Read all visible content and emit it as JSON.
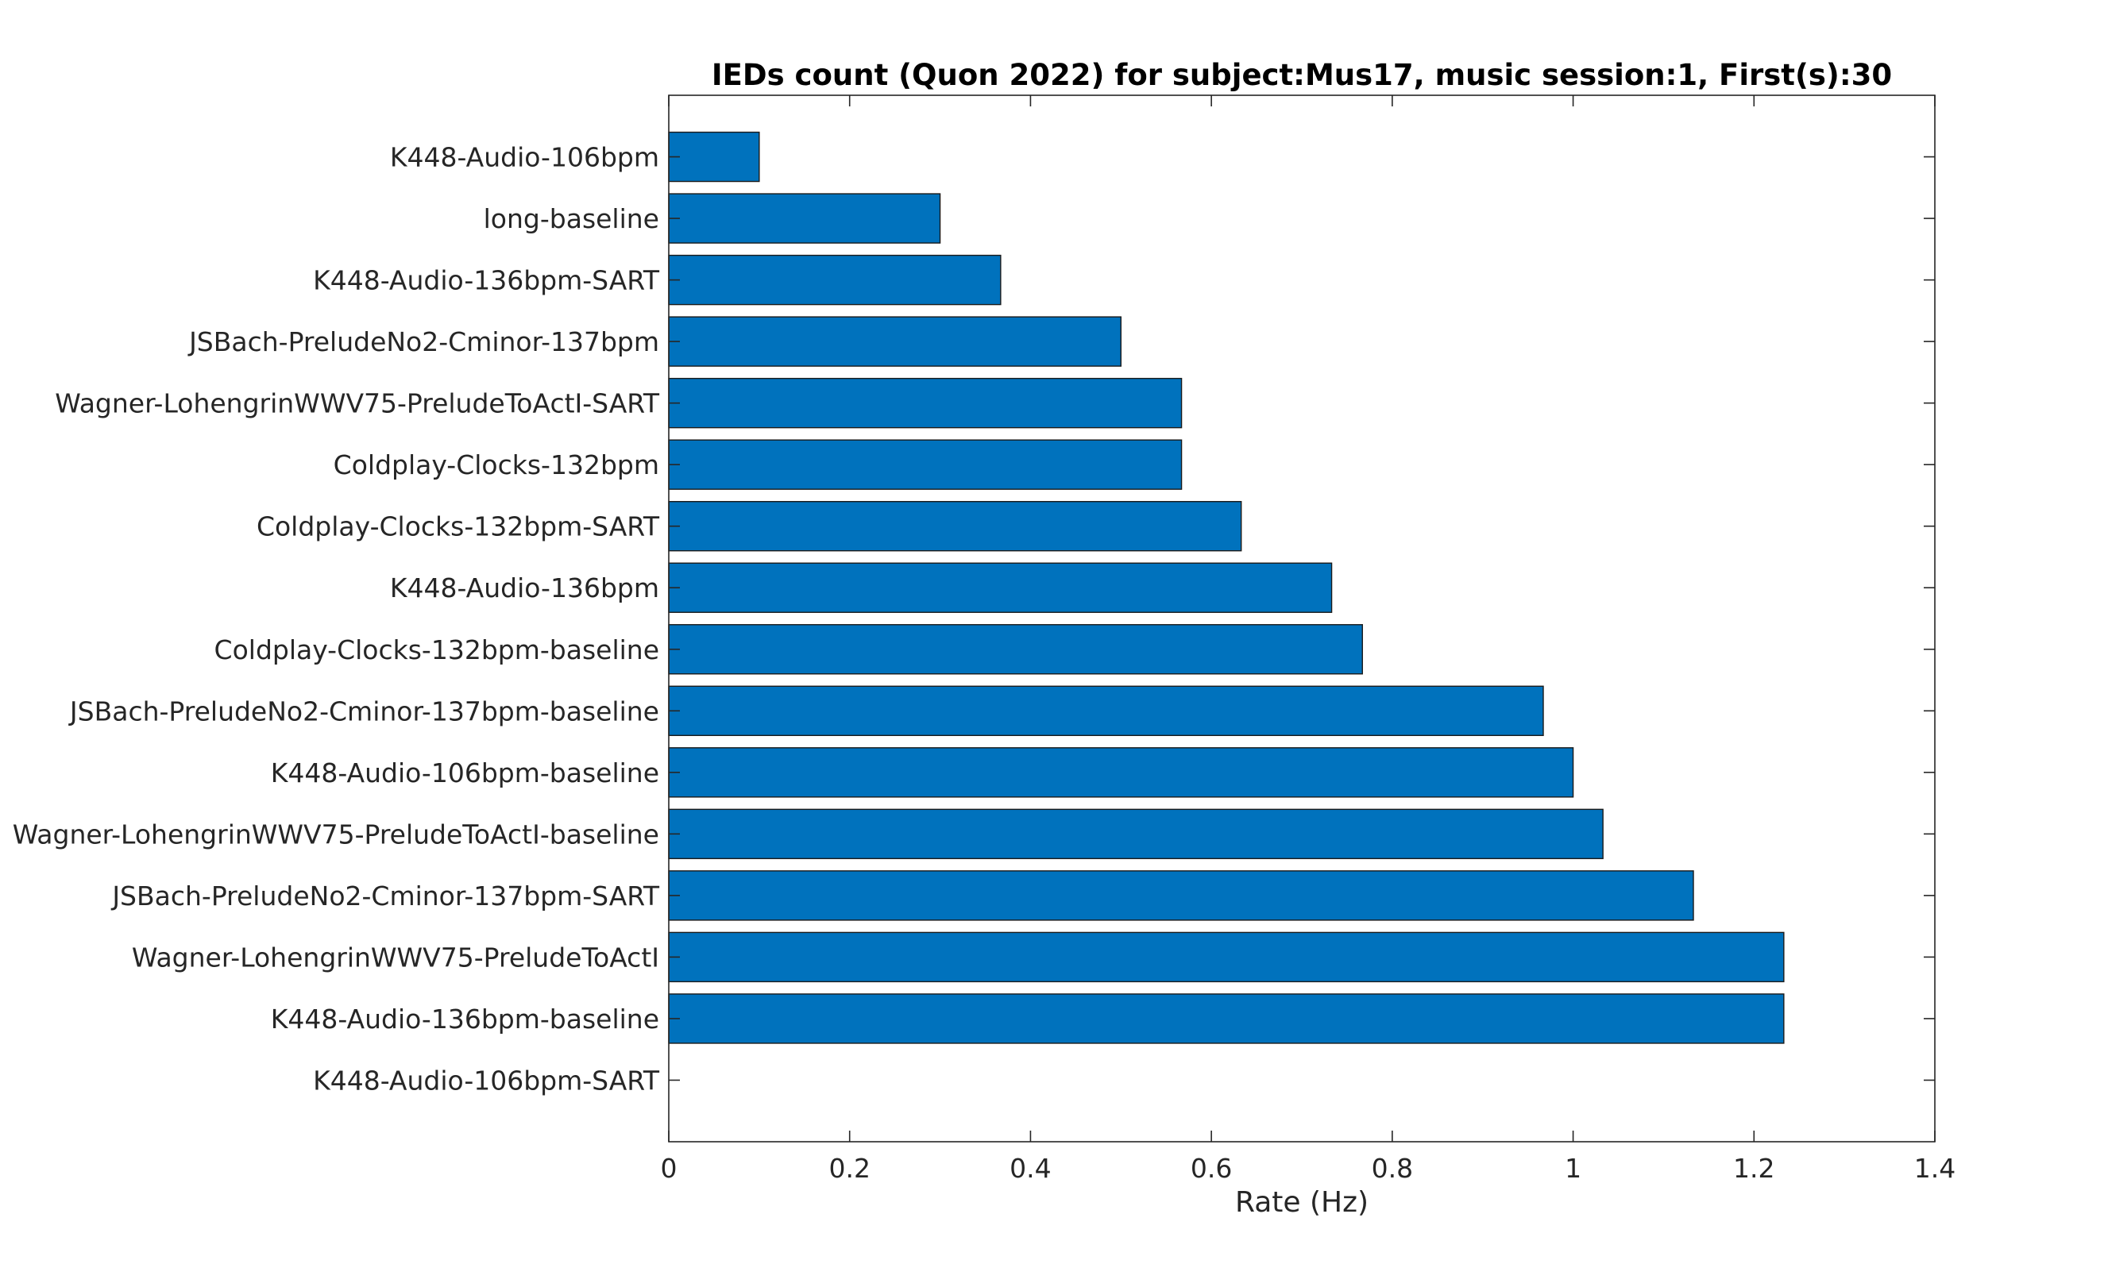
{
  "chart_data": {
    "type": "bar",
    "orientation": "horizontal",
    "title": "IEDs count (Quon 2022) for subject:Mus17, music session:1, First(s):30",
    "xlabel": "Rate (Hz)",
    "ylabel": "",
    "xlim": [
      0,
      1.4
    ],
    "xticks": [
      "0",
      "0.2",
      "0.4",
      "0.6",
      "0.8",
      "1",
      "1.2",
      "1.4"
    ],
    "xtick_values": [
      0,
      0.2,
      0.4,
      0.6,
      0.8,
      1,
      1.2,
      1.4
    ],
    "grid": false,
    "bar_color": "#0072BD",
    "categories": [
      "K448-Audio-106bpm",
      "long-baseline",
      "K448-Audio-136bpm-SART",
      "JSBach-PreludeNo2-Cminor-137bpm",
      "Wagner-LohengrinWWV75-PreludeToActI-SART",
      "Coldplay-Clocks-132bpm",
      "Coldplay-Clocks-132bpm-SART",
      "K448-Audio-136bpm",
      "Coldplay-Clocks-132bpm-baseline",
      "JSBach-PreludeNo2-Cminor-137bpm-baseline",
      "K448-Audio-106bpm-baseline",
      "Wagner-LohengrinWWV75-PreludeToActI-baseline",
      "JSBach-PreludeNo2-Cminor-137bpm-SART",
      "Wagner-LohengrinWWV75-PreludeToActI",
      "K448-Audio-136bpm-baseline",
      "K448-Audio-106bpm-SART"
    ],
    "values": [
      0.1,
      0.3,
      0.367,
      0.5,
      0.567,
      0.567,
      0.633,
      0.733,
      0.767,
      0.967,
      1.0,
      1.033,
      1.133,
      1.233,
      1.233,
      0
    ]
  }
}
